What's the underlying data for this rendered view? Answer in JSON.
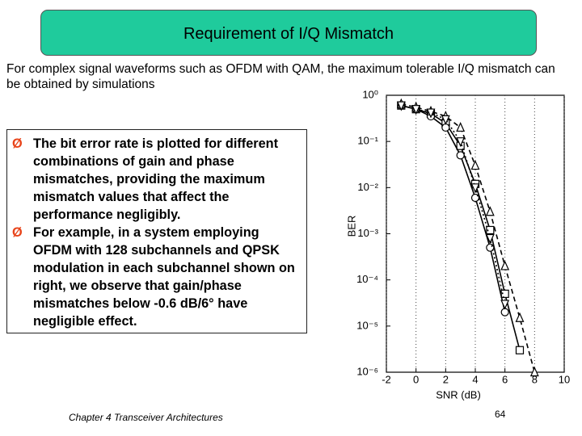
{
  "header": {
    "title": "Requirement of I/Q Mismatch"
  },
  "intro": "For complex signal waveforms such as OFDM with QAM, the maximum tolerable I/Q mismatch can be obtained by simulations",
  "bullets": [
    "The bit error rate is plotted for different combinations of gain and phase mismatches, providing the maximum mismatch values that affect the performance negligibly.",
    "For example, in a system employing OFDM with 128 subchannels and QPSK modulation in each subchannel  shown on right, we observe that gain/phase mismatches below -0.6 dB/6° have negligible effect."
  ],
  "footer": {
    "text": "Chapter 4 Transceiver Architectures",
    "page": "64"
  },
  "chart_data": {
    "type": "line",
    "xlabel": "SNR (dB)",
    "ylabel": "BER",
    "x": [
      -1,
      0,
      1,
      2,
      3,
      4,
      5,
      6,
      7,
      8
    ],
    "series": [
      {
        "color": "#000000",
        "dash": "solid",
        "marker": "square",
        "values": [
          0.6,
          0.5,
          0.4,
          0.25,
          0.08,
          0.012,
          0.0012,
          5e-05,
          3e-06,
          null
        ]
      },
      {
        "color": "#000000",
        "dash": "solid",
        "marker": "circle",
        "values": [
          0.6,
          0.5,
          0.35,
          0.2,
          0.05,
          0.006,
          0.0005,
          2e-05,
          null,
          null
        ]
      },
      {
        "color": "#000000",
        "dash": "dashed",
        "marker": "triangle-up",
        "values": [
          0.65,
          0.55,
          0.45,
          0.35,
          0.2,
          0.03,
          0.003,
          0.0002,
          1.5e-05,
          1e-06
        ]
      },
      {
        "color": "#000000",
        "dash": "dotted",
        "marker": "triangle-down",
        "values": [
          0.6,
          0.5,
          0.42,
          0.3,
          0.1,
          0.01,
          0.0008,
          3e-05,
          null,
          null
        ]
      }
    ],
    "xlim": [
      -2,
      10
    ],
    "xticks": [
      -2,
      0,
      2,
      4,
      6,
      8,
      10
    ],
    "ylim": [
      1e-06,
      1
    ],
    "ylog": true,
    "yticks": [
      {
        "value": 1,
        "label": "10⁰"
      },
      {
        "value": 0.1,
        "label": "10⁻¹"
      },
      {
        "value": 0.01,
        "label": "10⁻²"
      },
      {
        "value": 0.001,
        "label": "10⁻³"
      },
      {
        "value": 0.0001,
        "label": "10⁻⁴"
      },
      {
        "value": 1e-05,
        "label": "10⁻⁵"
      },
      {
        "value": 1e-06,
        "label": "10⁻⁶"
      }
    ],
    "grid": true
  }
}
